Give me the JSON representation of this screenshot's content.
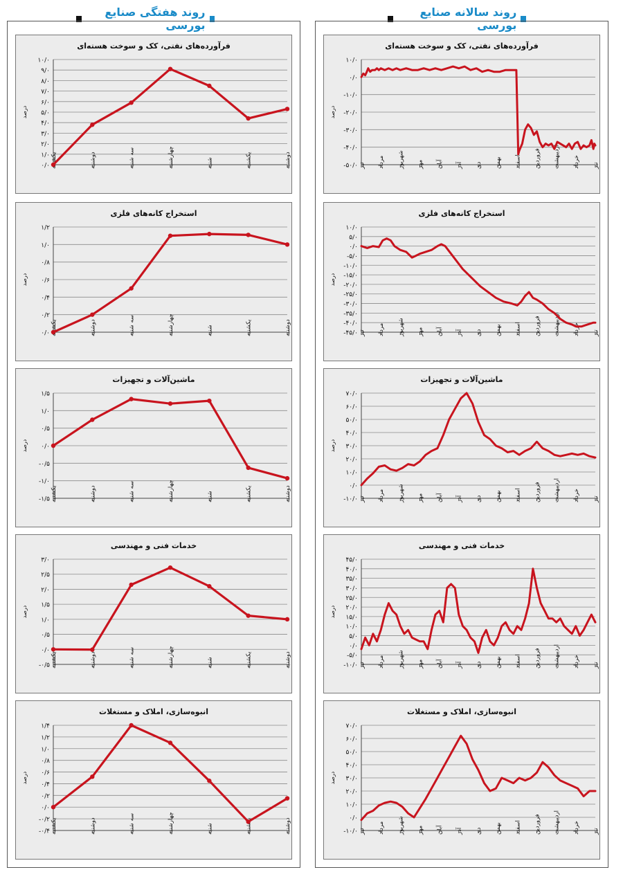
{
  "headers": {
    "weekly": "روند هفتگی صنایع بورسی",
    "annual": "روند سالانه صنایع بورسی"
  },
  "colors": {
    "line": "#c8141e",
    "title": "#1a8bc8",
    "panel": "#ececec",
    "grid": "#8a8a8a"
  },
  "chart_data": [
    {
      "id": "weekly-petroleum",
      "type": "line",
      "title": "فرآورده‌های نفتی، کک و سوخت هسته‌ای",
      "ylabel": "درصد",
      "categories": [
        "یکشنبه",
        "دوشنبه",
        "سه شنبه",
        "چهارشنبه",
        "شنبه",
        "یکشنبه",
        "دوشنبه"
      ],
      "values": [
        0.0,
        3.8,
        5.9,
        9.1,
        7.5,
        4.4,
        5.3
      ],
      "ylim": [
        0,
        10
      ],
      "yticks": [
        "۰/۰",
        "۱/۰",
        "۲/۰",
        "۳/۰",
        "۴/۰",
        "۵/۰",
        "۶/۰",
        "۷/۰",
        "۸/۰",
        "۹/۰",
        "۱۰/۰"
      ]
    },
    {
      "id": "weekly-metal-mining",
      "type": "line",
      "title": "استخراج کانه‌های فلزی",
      "ylabel": "درصد",
      "categories": [
        "یکشنبه",
        "دوشنبه",
        "سه شنبه",
        "چهارشنبه",
        "شنبه",
        "یکشنبه",
        "دوشنبه"
      ],
      "values": [
        0.0,
        0.2,
        0.5,
        1.1,
        1.12,
        1.11,
        1.0
      ],
      "ylim": [
        0,
        1.2
      ],
      "yticks": [
        "۰/۰",
        "۰/۲",
        "۰/۴",
        "۰/۶",
        "۰/۸",
        "۱/۰",
        "۱/۲"
      ]
    },
    {
      "id": "weekly-machinery",
      "type": "line",
      "title": "ماشین‌آلات و تجهیزات",
      "ylabel": "درصد",
      "categories": [
        "یکشنبه",
        "دوشنبه",
        "سه شنبه",
        "چهارشنبه",
        "شنبه",
        "یکشنبه",
        "دوشنبه"
      ],
      "values": [
        0.0,
        0.74,
        1.33,
        1.2,
        1.28,
        -0.63,
        -0.93
      ],
      "ylim": [
        -1.5,
        1.5
      ],
      "yticks": [
        "-۱/۵",
        "-۱/۰",
        "-۰/۵",
        "۰/۰",
        "۰/۵",
        "۱/۰",
        "۱/۵"
      ]
    },
    {
      "id": "weekly-engineering",
      "type": "line",
      "title": "خدمات فنی و مهندسی",
      "ylabel": "درصد",
      "categories": [
        "یکشنبه",
        "دوشنبه",
        "سه شنبه",
        "چهارشنبه",
        "شنبه",
        "یکشنبه",
        "دوشنبه"
      ],
      "values": [
        0.0,
        -0.01,
        2.15,
        2.72,
        2.1,
        1.12,
        1.0
      ],
      "ylim": [
        -0.5,
        3.0
      ],
      "yticks": [
        "-۰/۵",
        "۰/۰",
        "۰/۵",
        "۱/۰",
        "۱/۵",
        "۲/۰",
        "۲/۵",
        "۳/۰"
      ]
    },
    {
      "id": "weekly-real-estate",
      "type": "line",
      "title": "انبوه‌سازی، املاک و مستغلات",
      "ylabel": "درصد",
      "categories": [
        "یکشنبه",
        "دوشنبه",
        "سه شنبه",
        "چهارشنبه",
        "شنبه",
        "یکشنبه",
        "دوشنبه"
      ],
      "values": [
        0.0,
        0.52,
        1.4,
        1.1,
        0.45,
        -0.25,
        0.15
      ],
      "ylim": [
        -0.4,
        1.4
      ],
      "yticks": [
        "-۰/۴",
        "-۰/۲",
        "۰/۰",
        "۰/۲",
        "۰/۴",
        "۰/۶",
        "۰/۸",
        "۱/۰",
        "۱/۲",
        "۱/۴"
      ]
    },
    {
      "id": "annual-petroleum",
      "type": "line",
      "title": "فرآورده‌های نفتی، کک و سوخت هسته‌ای",
      "ylabel": "درصد",
      "categories": [
        "تیر",
        "مرداد",
        "شهریور",
        "مهر",
        "آبان",
        "آذر",
        "دی",
        "بهمن",
        "اسفند",
        "فروردین",
        "اردیبهشت",
        "خرداد",
        "تیر"
      ],
      "x": [
        0,
        0.1,
        0.2,
        0.28,
        0.35,
        0.45,
        0.55,
        0.7,
        0.8,
        0.9,
        1.0,
        1.2,
        1.4,
        1.6,
        1.8,
        2.0,
        2.3,
        2.6,
        2.9,
        3.2,
        3.5,
        3.8,
        4.1,
        4.4,
        4.7,
        5.0,
        5.3,
        5.6,
        5.9,
        6.2,
        6.5,
        6.8,
        7.1,
        7.4,
        7.7,
        7.95,
        8.05,
        8.1,
        8.25,
        8.4,
        8.55,
        8.7,
        8.85,
        9.0,
        9.15,
        9.3,
        9.45,
        9.6,
        9.75,
        9.9,
        10.05,
        10.2,
        10.35,
        10.5,
        10.65,
        10.8,
        10.95,
        11.1,
        11.25,
        11.4,
        11.55,
        11.7,
        11.8,
        11.9,
        11.95,
        12.0
      ],
      "values": [
        0,
        2,
        1,
        3,
        5,
        3,
        4,
        4,
        5,
        4,
        5,
        4,
        5,
        4,
        5,
        4,
        5,
        4,
        4,
        5,
        4,
        5,
        4,
        5,
        6,
        5,
        6,
        4,
        5,
        3,
        4,
        3,
        3,
        4,
        4,
        4,
        -44,
        -42,
        -38,
        -30,
        -27,
        -29,
        -33,
        -31,
        -37,
        -40,
        -38,
        -39,
        -38,
        -41,
        -37,
        -38,
        -39,
        -40,
        -38,
        -41,
        -38,
        -37,
        -41,
        -39,
        -40,
        -39,
        -36,
        -41,
        -38,
        -39
      ],
      "ylim": [
        -50,
        10
      ],
      "yticks": [
        "-۵۰/۰",
        "-۴۰/۰",
        "-۳۰/۰",
        "-۲۰/۰",
        "-۱۰/۰",
        "۰/۰",
        "۱۰/۰"
      ]
    },
    {
      "id": "annual-metal-mining",
      "type": "line",
      "title": "استخراج کانه‌های فلزی",
      "ylabel": "درصد",
      "categories": [
        "تیر",
        "مرداد",
        "شهریور",
        "مهر",
        "آبان",
        "آذر",
        "دی",
        "بهمن",
        "اسفند",
        "فروردین",
        "اردیبهشت",
        "خرداد",
        "تیر"
      ],
      "x": [
        0,
        0.3,
        0.6,
        0.9,
        1.1,
        1.3,
        1.5,
        1.7,
        2.0,
        2.3,
        2.6,
        2.8,
        3.0,
        3.3,
        3.6,
        3.9,
        4.1,
        4.3,
        4.6,
        4.9,
        5.2,
        5.5,
        5.8,
        6.1,
        6.5,
        6.9,
        7.3,
        7.7,
        8.0,
        8.2,
        8.4,
        8.6,
        8.8,
        9.0,
        9.3,
        9.6,
        9.9,
        10.2,
        10.5,
        10.8,
        11.0,
        11.3,
        11.6,
        11.9,
        12.0
      ],
      "values": [
        0,
        -1,
        0,
        -0.5,
        3,
        4,
        3,
        0,
        -2,
        -3,
        -6,
        -5,
        -4,
        -3,
        -2,
        0,
        1,
        0,
        -4,
        -8,
        -12,
        -15,
        -18,
        -21,
        -24,
        -27,
        -29,
        -30,
        -31,
        -29,
        -26,
        -24,
        -27,
        -28,
        -30,
        -33,
        -35,
        -38,
        -40,
        -41,
        -42,
        -42,
        -41,
        -40,
        -40
      ],
      "ylim": [
        -45,
        10
      ],
      "yticks": [
        "-۴۵/۰",
        "-۴۰/۰",
        "-۳۵/۰",
        "-۳۰/۰",
        "-۲۵/۰",
        "-۲۰/۰",
        "-۱۵/۰",
        "-۱۰/۰",
        "-۵/۰",
        "۰/۰",
        "۵/۰",
        "۱۰/۰"
      ]
    },
    {
      "id": "annual-machinery",
      "type": "line",
      "title": "ماشین‌آلات و تجهیزات",
      "ylabel": "درصد",
      "categories": [
        "تیر",
        "مرداد",
        "شهریور",
        "مهر",
        "آبان",
        "آذر",
        "دی",
        "بهمن",
        "اسفند",
        "فروردین",
        "اردیبهشت",
        "خرداد",
        "تیر"
      ],
      "x": [
        0,
        0.3,
        0.6,
        0.9,
        1.2,
        1.5,
        1.8,
        2.1,
        2.4,
        2.7,
        3.0,
        3.3,
        3.6,
        3.9,
        4.2,
        4.5,
        4.8,
        5.1,
        5.4,
        5.7,
        6.0,
        6.3,
        6.6,
        6.9,
        7.2,
        7.5,
        7.8,
        8.1,
        8.4,
        8.7,
        9.0,
        9.3,
        9.6,
        9.9,
        10.2,
        10.5,
        10.8,
        11.1,
        11.4,
        11.7,
        12.0
      ],
      "values": [
        0,
        5,
        9,
        14,
        15,
        12,
        11,
        13,
        16,
        15,
        18,
        23,
        26,
        28,
        38,
        50,
        58,
        66,
        70,
        62,
        48,
        38,
        35,
        30,
        28,
        25,
        26,
        23,
        26,
        28,
        33,
        28,
        26,
        23,
        22,
        23,
        24,
        23,
        24,
        22,
        21
      ],
      "ylim": [
        -10,
        70
      ],
      "yticks": [
        "-۱۰/۰",
        "۰/۰",
        "۱۰/۰",
        "۲۰/۰",
        "۳۰/۰",
        "۴۰/۰",
        "۵۰/۰",
        "۶۰/۰",
        "۷۰/۰"
      ]
    },
    {
      "id": "annual-engineering",
      "type": "line",
      "title": "خدمات فنی و مهندسی",
      "ylabel": "درصد",
      "categories": [
        "تیر",
        "مرداد",
        "شهریور",
        "مهر",
        "آبان",
        "آذر",
        "دی",
        "بهمن",
        "اسفند",
        "فروردین",
        "اردیبهشت",
        "خرداد",
        "تیر"
      ],
      "x": [
        0,
        0.2,
        0.4,
        0.6,
        0.8,
        1.0,
        1.2,
        1.4,
        1.6,
        1.8,
        2.0,
        2.2,
        2.4,
        2.6,
        2.8,
        3.0,
        3.2,
        3.4,
        3.6,
        3.8,
        4.0,
        4.2,
        4.4,
        4.6,
        4.8,
        5.0,
        5.2,
        5.4,
        5.6,
        5.8,
        6.0,
        6.2,
        6.4,
        6.6,
        6.8,
        7.0,
        7.2,
        7.4,
        7.6,
        7.8,
        8.0,
        8.2,
        8.4,
        8.6,
        8.8,
        9.0,
        9.2,
        9.4,
        9.6,
        9.8,
        10.0,
        10.2,
        10.4,
        10.6,
        10.8,
        11.0,
        11.2,
        11.4,
        11.6,
        11.8,
        12.0
      ],
      "values": [
        -2,
        4,
        0,
        6,
        2,
        8,
        16,
        22,
        18,
        16,
        10,
        6,
        8,
        4,
        3,
        2,
        2,
        -2,
        8,
        16,
        18,
        12,
        30,
        32,
        30,
        16,
        10,
        8,
        4,
        2,
        -4,
        4,
        8,
        2,
        0,
        4,
        10,
        12,
        8,
        6,
        10,
        8,
        14,
        22,
        40,
        30,
        22,
        18,
        14,
        14,
        12,
        14,
        10,
        8,
        6,
        10,
        5,
        8,
        12,
        16,
        12
      ],
      "ylim": [
        -10,
        45
      ],
      "yticks": [
        "-۱۰/۰",
        "-۵/۰",
        "۰/۰",
        "۵/۰",
        "۱۰/۰",
        "۱۵/۰",
        "۲۰/۰",
        "۲۵/۰",
        "۳۰/۰",
        "۳۵/۰",
        "۴۰/۰",
        "۴۵/۰"
      ]
    },
    {
      "id": "annual-real-estate",
      "type": "line",
      "title": "انبوه‌سازی، املاک و مستغلات",
      "ylabel": "درصد",
      "categories": [
        "تیر",
        "مرداد",
        "شهریور",
        "مهر",
        "آبان",
        "آذر",
        "دی",
        "بهمن",
        "اسفند",
        "فروردین",
        "اردیبهشت",
        "خرداد",
        "تیر"
      ],
      "x": [
        0,
        0.3,
        0.6,
        0.9,
        1.2,
        1.5,
        1.8,
        2.1,
        2.4,
        2.7,
        3.0,
        3.3,
        3.6,
        3.9,
        4.2,
        4.5,
        4.8,
        5.1,
        5.4,
        5.7,
        6.0,
        6.3,
        6.6,
        6.9,
        7.2,
        7.5,
        7.8,
        8.1,
        8.4,
        8.7,
        9.0,
        9.3,
        9.6,
        9.9,
        10.2,
        10.5,
        10.8,
        11.1,
        11.4,
        11.7,
        12.0
      ],
      "values": [
        -2,
        3,
        5,
        9,
        11,
        12,
        11,
        8,
        3,
        0,
        7,
        14,
        22,
        30,
        38,
        46,
        54,
        62,
        56,
        44,
        36,
        26,
        20,
        22,
        30,
        28,
        26,
        30,
        28,
        30,
        34,
        42,
        38,
        32,
        28,
        26,
        24,
        22,
        16,
        20,
        20
      ],
      "ylim": [
        -10,
        70
      ],
      "yticks": [
        "-۱۰/۰",
        "۰/۰",
        "۱۰/۰",
        "۲۰/۰",
        "۳۰/۰",
        "۴۰/۰",
        "۵۰/۰",
        "۶۰/۰",
        "۷۰/۰"
      ]
    }
  ]
}
